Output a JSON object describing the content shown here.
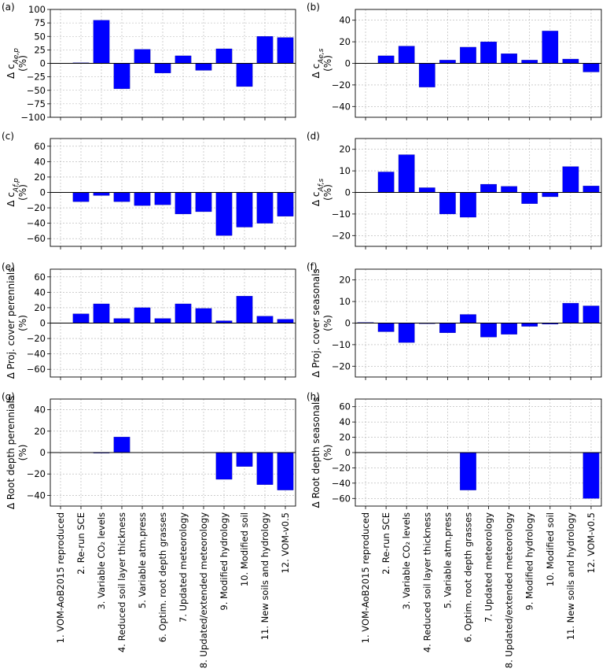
{
  "colors": {
    "bar": "#0000ff",
    "bar_edge": "#00008b",
    "grid": "#b0b0b0",
    "zero_line": "#000000"
  },
  "categories": [
    "1. VOM-AoB2015 reproduced",
    "2. Re-run SCE",
    "3. Variable CO₂ levels",
    "4. Reduced soil layer thickness",
    "5. Variable atm.press",
    "6. Optim. root depth grasses",
    "7. Updated meteorology",
    "8. Updated/extended meteorology",
    "9. Modified hydrology",
    "10. Modified soil",
    "11. New soils and hydrology",
    "12. VOM-v0.5"
  ],
  "chart_data": [
    {
      "type": "bar",
      "panel_label": "(a)",
      "ylabel_main": "Δ c",
      "ylabel_sub": "Ae,p",
      "ylabel_unit": "(%)",
      "ylim": [
        -100,
        100
      ],
      "yticks": [
        -100,
        -75,
        -50,
        -25,
        0,
        25,
        50,
        75,
        100
      ],
      "grid": true,
      "values": [
        null,
        1,
        80,
        -47,
        26,
        -18,
        14,
        -13,
        27,
        -43,
        50,
        48
      ]
    },
    {
      "type": "bar",
      "panel_label": "(b)",
      "ylabel_main": "Δ c",
      "ylabel_sub": "Ae,s",
      "ylabel_unit": "(%)",
      "ylim": [
        -50,
        50
      ],
      "yticks": [
        -40,
        -20,
        0,
        20,
        40
      ],
      "grid": true,
      "values": [
        null,
        7,
        16,
        -22,
        3,
        15,
        20,
        9,
        3,
        30,
        4,
        -8
      ]
    },
    {
      "type": "bar",
      "panel_label": "(c)",
      "ylabel_main": "Δ c",
      "ylabel_sub": "Af,p",
      "ylabel_unit": "(%)",
      "ylim": [
        -70,
        70
      ],
      "yticks": [
        -60,
        -40,
        -20,
        0,
        20,
        40,
        60
      ],
      "grid": true,
      "values": [
        null,
        -12,
        -4,
        -12,
        -17,
        -16,
        -28,
        -25,
        -56,
        -45,
        -40,
        -31
      ]
    },
    {
      "type": "bar",
      "panel_label": "(d)",
      "ylabel_main": "Δ c",
      "ylabel_sub": "Af,s",
      "ylabel_unit": "(%)",
      "ylim": [
        -25,
        25
      ],
      "yticks": [
        -20,
        -10,
        0,
        10,
        20
      ],
      "grid": true,
      "values": [
        null,
        9.5,
        17.5,
        2.2,
        -10,
        -11.5,
        3.8,
        2.8,
        -5.2,
        -2,
        12,
        3
      ]
    },
    {
      "type": "bar",
      "panel_label": "(e)",
      "ylabel_main": "Δ Proj. cover perennials",
      "ylabel_sub": "",
      "ylabel_unit": "(%)",
      "ylim": [
        -70,
        70
      ],
      "yticks": [
        -60,
        -40,
        -20,
        0,
        20,
        40,
        60
      ],
      "grid": true,
      "values": [
        null,
        12,
        25,
        6,
        20,
        6,
        25,
        19,
        3,
        35,
        9,
        5
      ]
    },
    {
      "type": "bar",
      "panel_label": "(f)",
      "ylabel_main": "Δ Proj. cover seasonals",
      "ylabel_sub": "",
      "ylabel_unit": "(%)",
      "ylim": [
        -25,
        25
      ],
      "yticks": [
        -20,
        -10,
        0,
        10,
        20
      ],
      "grid": true,
      "values": [
        0.3,
        -4,
        -9,
        -0.3,
        -4.5,
        4,
        -6.5,
        -5.2,
        -1.5,
        -0.5,
        9.2,
        8
      ]
    },
    {
      "type": "bar",
      "panel_label": "(g)",
      "ylabel_main": "Δ Root depth perennials",
      "ylabel_sub": "",
      "ylabel_unit": "(%)",
      "ylim": [
        -50,
        50
      ],
      "yticks": [
        -40,
        -20,
        0,
        20,
        40
      ],
      "grid": true,
      "values": [
        null,
        null,
        -0.5,
        14.5,
        null,
        null,
        null,
        null,
        -25,
        -13,
        -30,
        -35
      ]
    },
    {
      "type": "bar",
      "panel_label": "(h)",
      "ylabel_main": "Δ Root depth seasonals",
      "ylabel_sub": "",
      "ylabel_unit": "(%)",
      "ylim": [
        -70,
        70
      ],
      "yticks": [
        -60,
        -40,
        -20,
        0,
        20,
        40,
        60
      ],
      "grid": true,
      "values": [
        null,
        null,
        null,
        null,
        null,
        -49,
        null,
        null,
        null,
        null,
        null,
        -60
      ]
    }
  ]
}
